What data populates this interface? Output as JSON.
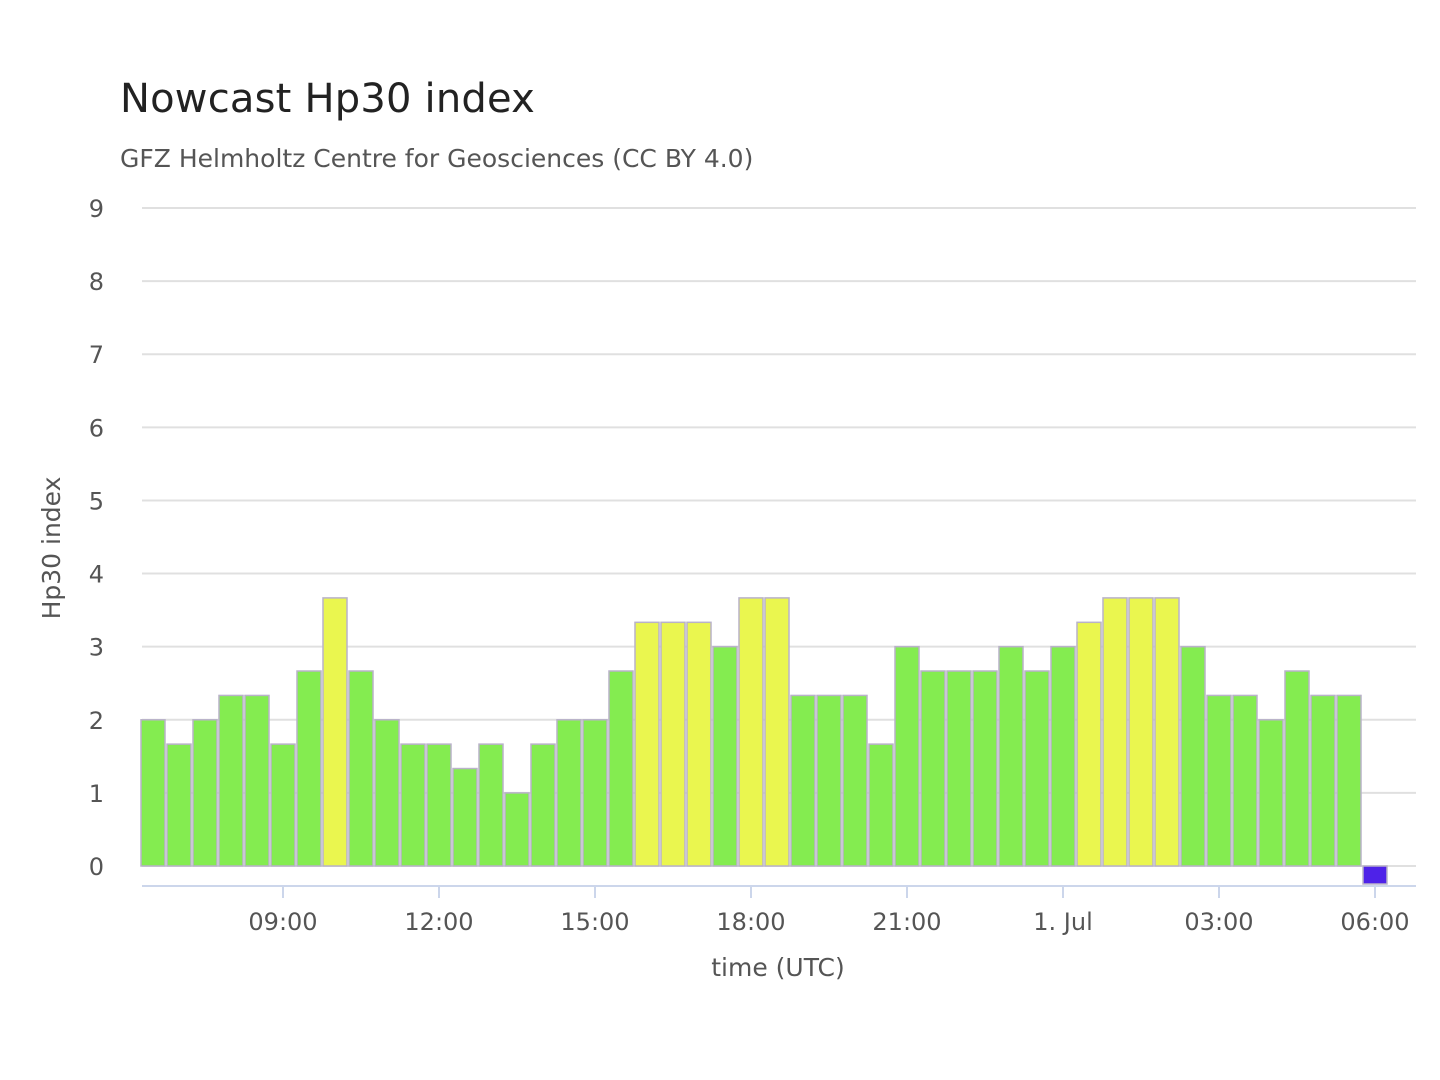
{
  "chart_data": {
    "type": "bar",
    "title": "Nowcast Hp30 index",
    "subtitle": "GFZ Helmholtz Centre for Geosciences (CC BY 4.0)",
    "xlabel": "time (UTC)",
    "ylabel": "Hp30 index",
    "ylim": [
      0,
      9
    ],
    "yticks": [
      "0",
      "1",
      "2",
      "3",
      "4",
      "5",
      "6",
      "7",
      "8",
      "9"
    ],
    "xticks": [
      {
        "label": "09:00",
        "value": "2024-06-30 09:00"
      },
      {
        "label": "12:00",
        "value": "2024-06-30 12:00"
      },
      {
        "label": "15:00",
        "value": "2024-06-30 15:00"
      },
      {
        "label": "18:00",
        "value": "2024-06-30 18:00"
      },
      {
        "label": "21:00",
        "value": "2024-06-30 21:00"
      },
      {
        "label": "1. Jul",
        "value": "2024-07-01 00:00"
      },
      {
        "label": "03:00",
        "value": "2024-07-01 03:00"
      },
      {
        "label": "06:00",
        "value": "2024-07-01 06:00"
      }
    ],
    "grid": true,
    "legend": "none",
    "colors": {
      "low": "#84EC50",
      "moderate": "#EAF64F",
      "zero": "#4E22E8",
      "grid": "#E0E0E0",
      "axis": "#CCD6EB"
    },
    "x": [
      "2024-06-30 06:30",
      "2024-06-30 07:00",
      "2024-06-30 07:30",
      "2024-06-30 08:00",
      "2024-06-30 08:30",
      "2024-06-30 09:00",
      "2024-06-30 09:30",
      "2024-06-30 10:00",
      "2024-06-30 10:30",
      "2024-06-30 11:00",
      "2024-06-30 11:30",
      "2024-06-30 12:00",
      "2024-06-30 12:30",
      "2024-06-30 13:00",
      "2024-06-30 13:30",
      "2024-06-30 14:00",
      "2024-06-30 14:30",
      "2024-06-30 15:00",
      "2024-06-30 15:30",
      "2024-06-30 16:00",
      "2024-06-30 16:30",
      "2024-06-30 17:00",
      "2024-06-30 17:30",
      "2024-06-30 18:00",
      "2024-06-30 18:30",
      "2024-06-30 19:00",
      "2024-06-30 19:30",
      "2024-06-30 20:00",
      "2024-06-30 20:30",
      "2024-06-30 21:00",
      "2024-06-30 21:30",
      "2024-06-30 22:00",
      "2024-06-30 22:30",
      "2024-06-30 23:00",
      "2024-06-30 23:30",
      "2024-07-01 00:00",
      "2024-07-01 00:30",
      "2024-07-01 01:00",
      "2024-07-01 01:30",
      "2024-07-01 02:00",
      "2024-07-01 02:30",
      "2024-07-01 03:00",
      "2024-07-01 03:30",
      "2024-07-01 04:00",
      "2024-07-01 04:30",
      "2024-07-01 05:00",
      "2024-07-01 05:30",
      "2024-07-01 06:00"
    ],
    "values": [
      2.0,
      1.667,
      2.0,
      2.333,
      2.333,
      1.667,
      2.667,
      3.667,
      2.667,
      2.0,
      1.667,
      1.667,
      1.333,
      1.667,
      1.0,
      1.667,
      2.0,
      2.0,
      2.667,
      3.333,
      3.333,
      3.333,
      3.0,
      3.667,
      3.667,
      2.333,
      2.333,
      2.333,
      1.667,
      3.0,
      2.667,
      2.667,
      2.667,
      3.0,
      2.667,
      3.0,
      3.333,
      3.667,
      3.667,
      3.667,
      3.0,
      2.333,
      2.333,
      2.0,
      2.667,
      2.333,
      2.333,
      0.0
    ]
  }
}
